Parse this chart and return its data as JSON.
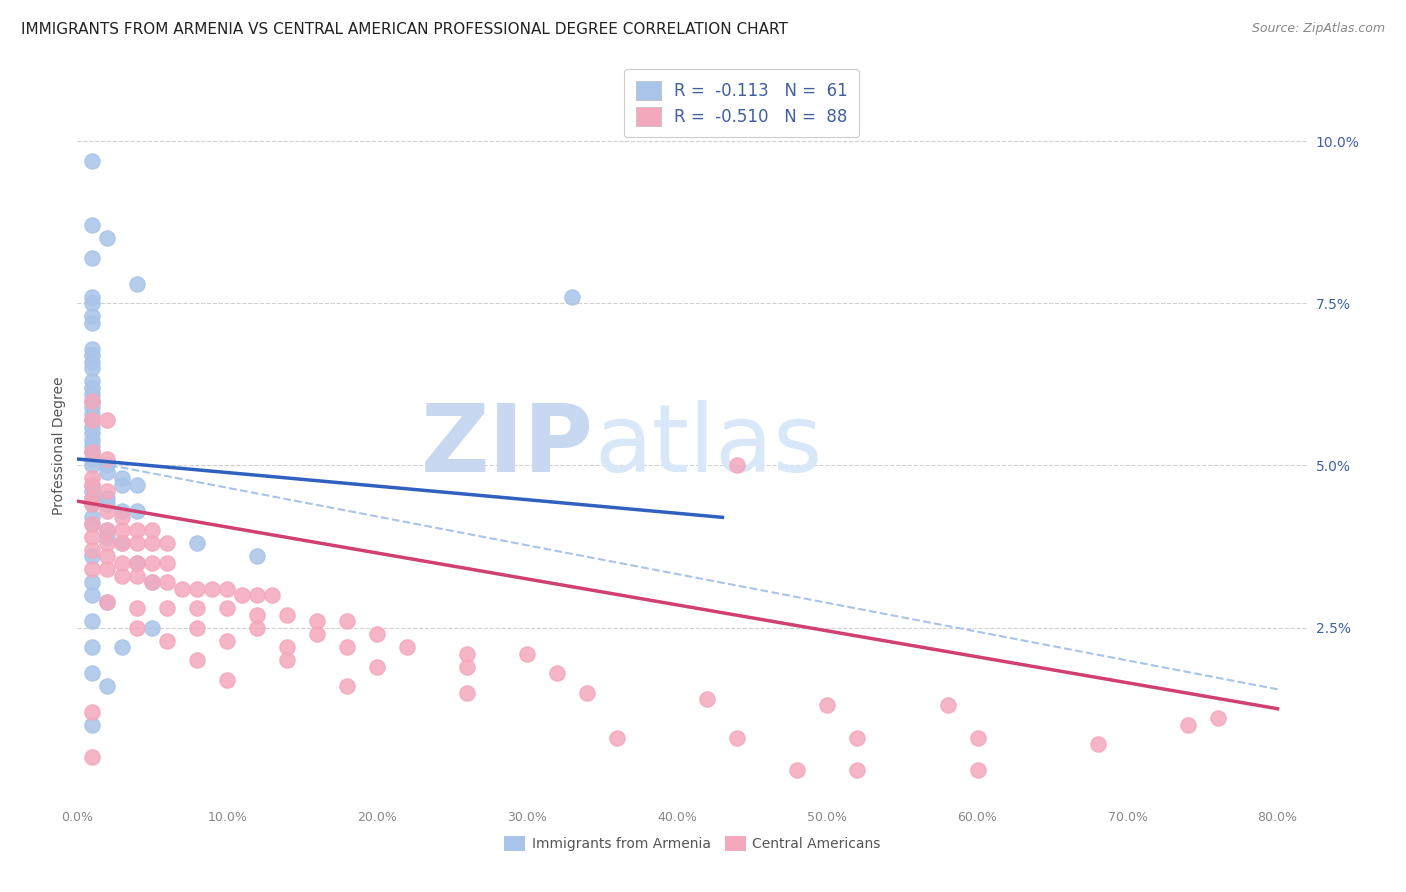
{
  "title": "IMMIGRANTS FROM ARMENIA VS CENTRAL AMERICAN PROFESSIONAL DEGREE CORRELATION CHART",
  "source": "Source: ZipAtlas.com",
  "ylabel": "Professional Degree",
  "right_yticks": [
    "10.0%",
    "7.5%",
    "5.0%",
    "2.5%"
  ],
  "right_ytick_vals": [
    0.1,
    0.075,
    0.05,
    0.025
  ],
  "xlim": [
    0.0,
    0.82
  ],
  "ylim": [
    -0.002,
    0.108
  ],
  "armenia_R": "-0.113",
  "armenia_N": "61",
  "central_R": "-0.510",
  "central_N": "88",
  "armenia_color": "#a8c4e8",
  "central_color": "#f4a8bc",
  "armenia_line_color": "#3060c0",
  "central_line_color": "#d04070",
  "dashed_line_color": "#a8c4e8",
  "legend_text_color": "#4060a0",
  "watermark_zip_color": "#c8d8f0",
  "watermark_atlas_color": "#c8d8f0",
  "background_color": "#ffffff",
  "armenia_scatter": [
    [
      0.01,
      0.097
    ],
    [
      0.01,
      0.087
    ],
    [
      0.02,
      0.085
    ],
    [
      0.01,
      0.082
    ],
    [
      0.04,
      0.078
    ],
    [
      0.01,
      0.076
    ],
    [
      0.01,
      0.075
    ],
    [
      0.01,
      0.073
    ],
    [
      0.01,
      0.072
    ],
    [
      0.33,
      0.076
    ],
    [
      0.01,
      0.068
    ],
    [
      0.01,
      0.067
    ],
    [
      0.01,
      0.066
    ],
    [
      0.01,
      0.065
    ],
    [
      0.01,
      0.063
    ],
    [
      0.01,
      0.062
    ],
    [
      0.01,
      0.061
    ],
    [
      0.01,
      0.06
    ],
    [
      0.01,
      0.059
    ],
    [
      0.01,
      0.058
    ],
    [
      0.01,
      0.057
    ],
    [
      0.01,
      0.056
    ],
    [
      0.01,
      0.055
    ],
    [
      0.01,
      0.054
    ],
    [
      0.01,
      0.053
    ],
    [
      0.01,
      0.052
    ],
    [
      0.01,
      0.051
    ],
    [
      0.01,
      0.05
    ],
    [
      0.02,
      0.05
    ],
    [
      0.02,
      0.049
    ],
    [
      0.03,
      0.048
    ],
    [
      0.01,
      0.047
    ],
    [
      0.03,
      0.047
    ],
    [
      0.04,
      0.047
    ],
    [
      0.01,
      0.046
    ],
    [
      0.01,
      0.045
    ],
    [
      0.02,
      0.045
    ],
    [
      0.01,
      0.044
    ],
    [
      0.02,
      0.044
    ],
    [
      0.03,
      0.043
    ],
    [
      0.04,
      0.043
    ],
    [
      0.01,
      0.042
    ],
    [
      0.01,
      0.041
    ],
    [
      0.02,
      0.04
    ],
    [
      0.02,
      0.039
    ],
    [
      0.03,
      0.038
    ],
    [
      0.01,
      0.036
    ],
    [
      0.04,
      0.035
    ],
    [
      0.01,
      0.032
    ],
    [
      0.01,
      0.03
    ],
    [
      0.02,
      0.029
    ],
    [
      0.01,
      0.026
    ],
    [
      0.05,
      0.025
    ],
    [
      0.01,
      0.022
    ],
    [
      0.03,
      0.022
    ],
    [
      0.01,
      0.018
    ],
    [
      0.02,
      0.016
    ],
    [
      0.01,
      0.01
    ],
    [
      0.05,
      0.032
    ],
    [
      0.08,
      0.038
    ],
    [
      0.12,
      0.036
    ]
  ],
  "central_scatter": [
    [
      0.01,
      0.06
    ],
    [
      0.01,
      0.057
    ],
    [
      0.02,
      0.057
    ],
    [
      0.01,
      0.052
    ],
    [
      0.02,
      0.051
    ],
    [
      0.01,
      0.048
    ],
    [
      0.01,
      0.047
    ],
    [
      0.02,
      0.046
    ],
    [
      0.01,
      0.045
    ],
    [
      0.01,
      0.044
    ],
    [
      0.02,
      0.043
    ],
    [
      0.03,
      0.042
    ],
    [
      0.01,
      0.041
    ],
    [
      0.02,
      0.04
    ],
    [
      0.03,
      0.04
    ],
    [
      0.04,
      0.04
    ],
    [
      0.05,
      0.04
    ],
    [
      0.01,
      0.039
    ],
    [
      0.02,
      0.038
    ],
    [
      0.03,
      0.038
    ],
    [
      0.04,
      0.038
    ],
    [
      0.05,
      0.038
    ],
    [
      0.06,
      0.038
    ],
    [
      0.01,
      0.037
    ],
    [
      0.02,
      0.036
    ],
    [
      0.03,
      0.035
    ],
    [
      0.04,
      0.035
    ],
    [
      0.05,
      0.035
    ],
    [
      0.06,
      0.035
    ],
    [
      0.01,
      0.034
    ],
    [
      0.02,
      0.034
    ],
    [
      0.03,
      0.033
    ],
    [
      0.04,
      0.033
    ],
    [
      0.05,
      0.032
    ],
    [
      0.06,
      0.032
    ],
    [
      0.07,
      0.031
    ],
    [
      0.08,
      0.031
    ],
    [
      0.09,
      0.031
    ],
    [
      0.1,
      0.031
    ],
    [
      0.11,
      0.03
    ],
    [
      0.12,
      0.03
    ],
    [
      0.13,
      0.03
    ],
    [
      0.02,
      0.029
    ],
    [
      0.04,
      0.028
    ],
    [
      0.06,
      0.028
    ],
    [
      0.08,
      0.028
    ],
    [
      0.1,
      0.028
    ],
    [
      0.12,
      0.027
    ],
    [
      0.14,
      0.027
    ],
    [
      0.16,
      0.026
    ],
    [
      0.18,
      0.026
    ],
    [
      0.04,
      0.025
    ],
    [
      0.08,
      0.025
    ],
    [
      0.12,
      0.025
    ],
    [
      0.16,
      0.024
    ],
    [
      0.2,
      0.024
    ],
    [
      0.06,
      0.023
    ],
    [
      0.1,
      0.023
    ],
    [
      0.14,
      0.022
    ],
    [
      0.18,
      0.022
    ],
    [
      0.22,
      0.022
    ],
    [
      0.26,
      0.021
    ],
    [
      0.3,
      0.021
    ],
    [
      0.08,
      0.02
    ],
    [
      0.14,
      0.02
    ],
    [
      0.2,
      0.019
    ],
    [
      0.26,
      0.019
    ],
    [
      0.32,
      0.018
    ],
    [
      0.1,
      0.017
    ],
    [
      0.18,
      0.016
    ],
    [
      0.26,
      0.015
    ],
    [
      0.34,
      0.015
    ],
    [
      0.42,
      0.014
    ],
    [
      0.5,
      0.013
    ],
    [
      0.58,
      0.013
    ],
    [
      0.44,
      0.05
    ],
    [
      0.74,
      0.01
    ],
    [
      0.01,
      0.005
    ],
    [
      0.48,
      0.003
    ],
    [
      0.52,
      0.003
    ],
    [
      0.6,
      0.003
    ],
    [
      0.36,
      0.008
    ],
    [
      0.44,
      0.008
    ],
    [
      0.52,
      0.008
    ],
    [
      0.6,
      0.008
    ],
    [
      0.68,
      0.007
    ],
    [
      0.76,
      0.011
    ],
    [
      0.01,
      0.012
    ]
  ],
  "armenia_trendline_x": [
    0.0,
    0.43
  ],
  "armenia_trendline_y": [
    0.051,
    0.042
  ],
  "central_trendline_x": [
    0.0,
    0.8
  ],
  "central_trendline_y": [
    0.0445,
    0.0125
  ],
  "dashed_trendline_x": [
    0.0,
    0.8
  ],
  "dashed_trendline_y": [
    0.051,
    0.0155
  ]
}
